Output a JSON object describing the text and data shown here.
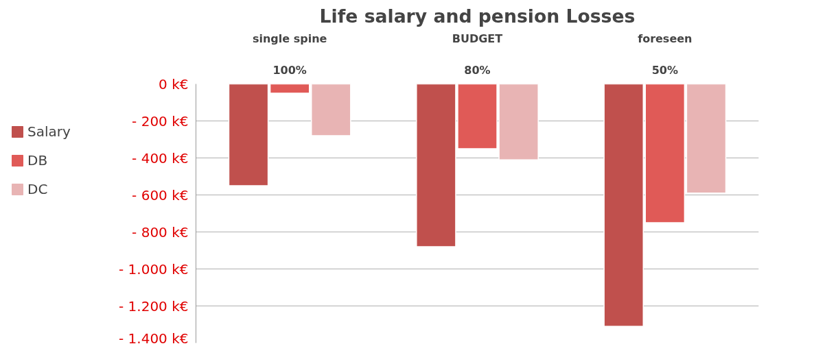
{
  "chart_data": {
    "type": "bar",
    "title": "Life salary and pension Losses",
    "categories": [
      "single spine\n\n100%",
      "BUDGET\n\n80%",
      "foreseen\n\n50%"
    ],
    "series": [
      {
        "name": "Salary",
        "color": "#c0504d",
        "values": [
          -550,
          -880,
          -1310
        ]
      },
      {
        "name": "DB",
        "color": "#e05a57",
        "values": [
          -50,
          -350,
          -750
        ]
      },
      {
        "name": "DC",
        "color": "#e8b4b4",
        "values": [
          -280,
          -410,
          -590
        ]
      }
    ],
    "ylim": [
      -1400,
      0
    ],
    "yticks": [
      {
        "value": 0,
        "label": "0 k€"
      },
      {
        "value": -200,
        "label": "- 200 k€"
      },
      {
        "value": -400,
        "label": "- 400 k€"
      },
      {
        "value": -600,
        "label": "- 600 k€"
      },
      {
        "value": -800,
        "label": "- 800 k€"
      },
      {
        "value": -1000,
        "label": "- 1.000 k€"
      },
      {
        "value": -1200,
        "label": "- 1.200 k€"
      },
      {
        "value": -1400,
        "label": "- 1.400 k€"
      }
    ],
    "grid": "y",
    "legend": "left"
  }
}
